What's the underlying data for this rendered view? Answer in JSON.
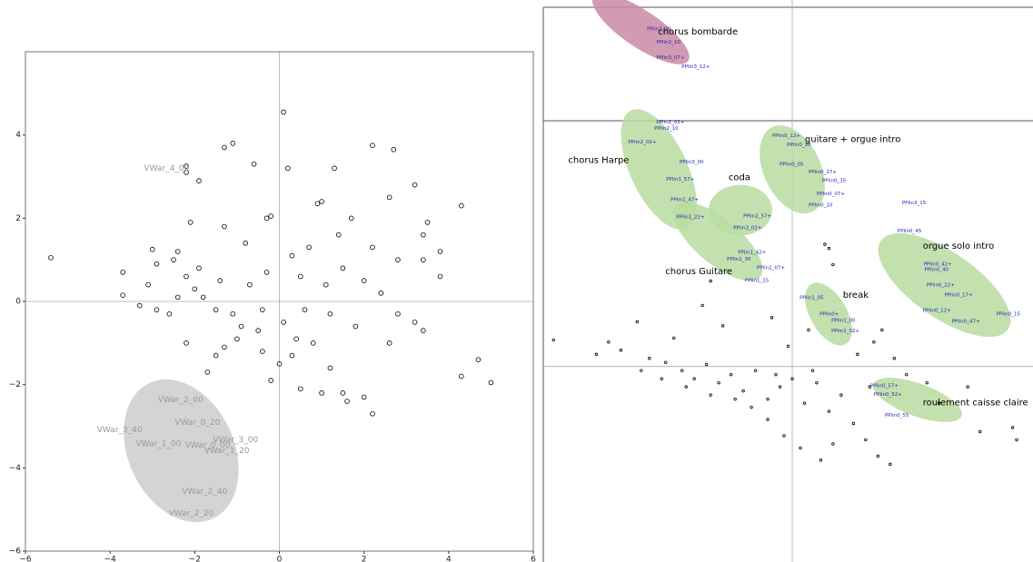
{
  "chart_data": [
    {
      "type": "scatter",
      "xlim": [
        -6,
        6
      ],
      "ylim": [
        -6,
        6
      ],
      "xticks": [
        {
          "value": -6,
          "label": "−6"
        },
        {
          "value": -4,
          "label": "−4"
        },
        {
          "value": -2,
          "label": "−2"
        },
        0,
        2,
        4,
        6
      ],
      "yticks": [
        {
          "value": -6,
          "label": "−6"
        },
        {
          "value": -4,
          "label": "−4"
        },
        {
          "value": -2,
          "label": "−2"
        },
        0,
        2,
        4
      ],
      "color": "#000000",
      "x": [
        -5.4,
        0.1,
        -1.3,
        -1.1,
        -2.2,
        -2.2,
        -1.9,
        -0.6,
        2.2,
        2.7,
        0.2,
        1.3,
        3.2,
        2.6,
        1.0,
        0.9,
        -2.1,
        -0.3,
        -0.2,
        4.3,
        3.5,
        3.4,
        3.8,
        3.4,
        3.8,
        4.3,
        4.7,
        5.0,
        2.0,
        2.2,
        1.6,
        1.0,
        0.5,
        -0.2,
        -1.7,
        -3.7,
        -3.7,
        -3.1,
        -2.9,
        -2.5,
        -2.4,
        -3.0,
        -2.2,
        -1.5,
        -1.3,
        0.0,
        0.3,
        0.8,
        1.2,
        -0.5,
        -0.9,
        -1.1,
        -1.5,
        -1.8,
        -2.0,
        -2.2,
        -1.9,
        -1.4,
        -0.7,
        -0.3,
        0.3,
        0.5,
        1.1,
        1.5,
        2.0,
        2.4,
        2.8,
        3.2,
        3.4,
        2.6,
        1.8,
        1.2,
        0.6,
        0.1,
        -0.4,
        -1.0,
        -2.6,
        -2.9,
        -2.4,
        1.4,
        0.7,
        -0.8,
        -1.3,
        0.4,
        2.2,
        2.8,
        1.7,
        -0.4,
        1.5,
        -3.3
      ],
      "y": [
        1.05,
        4.55,
        3.7,
        3.8,
        3.25,
        3.1,
        2.9,
        3.3,
        3.75,
        3.65,
        3.2,
        3.2,
        2.8,
        2.5,
        2.4,
        2.35,
        1.9,
        2.0,
        2.05,
        2.3,
        1.9,
        1.6,
        1.2,
        1.0,
        0.6,
        -1.8,
        -1.4,
        -1.95,
        -2.3,
        -2.7,
        -2.4,
        -2.2,
        -2.1,
        -1.9,
        -1.7,
        0.15,
        0.7,
        0.4,
        0.9,
        1.0,
        1.2,
        1.25,
        -1.0,
        -1.3,
        -1.1,
        -1.5,
        -1.3,
        -1.0,
        -1.6,
        -0.7,
        -0.6,
        -0.3,
        -0.2,
        0.1,
        0.3,
        0.6,
        0.8,
        0.5,
        0.4,
        0.7,
        1.1,
        0.6,
        0.4,
        0.8,
        0.5,
        0.2,
        -0.3,
        -0.5,
        -0.7,
        -1.0,
        -0.6,
        -0.3,
        -0.2,
        -0.5,
        -0.2,
        -0.9,
        -0.3,
        -0.2,
        0.1,
        1.6,
        1.3,
        1.4,
        1.8,
        -0.9,
        1.3,
        1.0,
        2.0,
        -1.2,
        -2.2,
        -0.1
      ],
      "ellipses": [
        {
          "cx": -2.32,
          "cy": -3.59,
          "rx": 1.25,
          "ry": 1.8,
          "angle": -25,
          "color": "#cccccc"
        }
      ],
      "annotations": [
        {
          "text": "VWar_4_00",
          "x": -3.2,
          "y": 3.2,
          "color": "#999999"
        },
        {
          "text": "VWar_2_00",
          "x": -2.87,
          "y": -2.37,
          "color": "#999999"
        },
        {
          "text": "VWar_3_40",
          "x": -4.31,
          "y": -3.09,
          "color": "#999999"
        },
        {
          "text": "VWar_0_20",
          "x": -2.47,
          "y": -2.91,
          "color": "#999999"
        },
        {
          "text": "VWar_1_00",
          "x": -3.39,
          "y": -3.43,
          "color": "#999999"
        },
        {
          "text": "VWar_0_00",
          "x": -2.23,
          "y": -3.46,
          "color": "#999999"
        },
        {
          "text": "VWar_3_00",
          "x": -1.57,
          "y": -3.33,
          "color": "#999999"
        },
        {
          "text": "VWar_1_20",
          "x": -1.78,
          "y": -3.59,
          "color": "#999999"
        },
        {
          "text": "VWar_2_40",
          "x": -2.3,
          "y": -4.57,
          "color": "#999999"
        },
        {
          "text": "VWar_2_20",
          "x": -2.62,
          "y": -5.09,
          "color": "#999999"
        }
      ]
    },
    {
      "type": "scatter",
      "xlim": [
        -6.1,
        5.9
      ],
      "ylim": [
        -4.8,
        9
      ],
      "color": "#000000",
      "x": [
        -5.85,
        -4.8,
        -4.2,
        -3.5,
        -3.1,
        -2.7,
        -2.4,
        -2.1,
        -1.8,
        -1.5,
        -1.2,
        -0.9,
        -0.6,
        -0.3,
        0.0,
        0.3,
        0.6,
        0.9,
        1.2,
        1.5,
        1.8,
        2.1,
        2.4,
        -0.2,
        0.2,
        0.7,
        1.0,
        -0.6,
        -1.0,
        -1.4,
        -2.0,
        -2.6,
        -3.2,
        -3.7,
        -4.5,
        -3.8,
        -2.2,
        -2.0,
        -0.5,
        0.9,
        1.0,
        0.8,
        2.0,
        2.2,
        2.5,
        3.3,
        4.6,
        5.4,
        5.5,
        4.3,
        3.6,
        2.8,
        -0.1,
        0.4,
        -1.7,
        -2.9,
        1.6,
        0.5,
        -0.4,
        1.9
      ],
      "y": [
        0.65,
        0.3,
        0.4,
        0.2,
        0.1,
        -0.1,
        -0.3,
        0.05,
        -0.4,
        -0.2,
        -0.6,
        -0.1,
        -0.8,
        -0.5,
        -0.3,
        -0.9,
        -0.4,
        -1.1,
        -0.7,
        -1.4,
        -1.8,
        -2.2,
        -2.4,
        -1.7,
        -2.0,
        -2.3,
        -1.9,
        -1.3,
        -1.0,
        -0.8,
        -0.7,
        -0.5,
        -0.3,
        -0.1,
        0.6,
        1.1,
        1.5,
        2.1,
        1.2,
        2.9,
        2.5,
        3.0,
        0.6,
        0.9,
        0.2,
        -0.4,
        -1.6,
        -1.5,
        -1.8,
        -0.5,
        -0.9,
        -0.2,
        0.5,
        0.9,
        1.0,
        0.7,
        0.3,
        -0.1,
        -0.2,
        -0.5
      ],
      "ellipses": [
        {
          "cx": -3.71,
          "cy": 8.29,
          "rx": 1.4,
          "ry": 0.45,
          "angle": 34,
          "color": "#c98aa3"
        },
        {
          "cx": -3.27,
          "cy": 4.84,
          "rx": 0.7,
          "ry": 1.6,
          "angle": -25,
          "color": "#b9dca0"
        },
        {
          "cx": -1.82,
          "cy": 3.07,
          "rx": 1.35,
          "ry": 0.55,
          "angle": 40,
          "color": "#b9dca0"
        },
        {
          "cx": -1.27,
          "cy": 3.84,
          "rx": 0.78,
          "ry": 0.62,
          "angle": 0,
          "color": "#b9dca0"
        },
        {
          "cx": 0,
          "cy": 4.84,
          "rx": 0.7,
          "ry": 1.15,
          "angle": -25,
          "color": "#b9dca0"
        },
        {
          "cx": 3.73,
          "cy": 2.0,
          "rx": 1.9,
          "ry": 0.8,
          "angle": 35,
          "color": "#b9dca0"
        },
        {
          "cx": 0.89,
          "cy": 1.29,
          "rx": 0.45,
          "ry": 0.85,
          "angle": -30,
          "color": "#b9dca0"
        },
        {
          "cx": 3.07,
          "cy": -0.82,
          "rx": 1.15,
          "ry": 0.4,
          "angle": 20,
          "color": "#b9dca0"
        }
      ],
      "annotations": [
        {
          "text": "chorus bombarde",
          "x": -3.29,
          "y": 8.22,
          "color": "#000000"
        },
        {
          "text": "chorus Harpe",
          "x": -5.49,
          "y": 5.07,
          "color": "#000000"
        },
        {
          "text": "coda",
          "x": -1.56,
          "y": 4.64,
          "color": "#000000"
        },
        {
          "text": "guitare + orgue intro",
          "x": 0.31,
          "y": 5.58,
          "color": "#000000"
        },
        {
          "text": "orgue solo intro",
          "x": 3.2,
          "y": 2.96,
          "color": "#000000"
        },
        {
          "text": "chorus Guitare",
          "x": -3.11,
          "y": 2.33,
          "color": "#000000"
        },
        {
          "text": "break",
          "x": 1.24,
          "y": 1.76,
          "color": "#000000"
        },
        {
          "text": "roulement caisse claire",
          "x": 3.2,
          "y": -0.89,
          "color": "#000000"
        }
      ],
      "point_labels": [
        {
          "text": "PPlin0_12+",
          "x": -0.49,
          "y": 5.67
        },
        {
          "text": "PPlin0_10",
          "x": -0.13,
          "y": 5.44
        },
        {
          "text": "PPlin0_05",
          "x": -0.31,
          "y": 4.96
        },
        {
          "text": "PPlin0_27+",
          "x": 0.4,
          "y": 4.78
        },
        {
          "text": "PPlin0_35",
          "x": 0.73,
          "y": 4.56
        },
        {
          "text": "PPlin0_07+",
          "x": 0.6,
          "y": 4.24
        },
        {
          "text": "PPlin0_10",
          "x": 0.4,
          "y": 3.96
        },
        {
          "text": "PPlin3_15",
          "x": 2.69,
          "y": 4.02
        },
        {
          "text": "PPlin0_45",
          "x": 2.58,
          "y": 3.33
        },
        {
          "text": "PPlin0_42+",
          "x": 3.22,
          "y": 2.51
        },
        {
          "text": "PPlin0_40",
          "x": 3.24,
          "y": 2.38
        },
        {
          "text": "PPlin0_22+",
          "x": 3.29,
          "y": 2.0
        },
        {
          "text": "PPlin0_17+",
          "x": 3.73,
          "y": 1.76
        },
        {
          "text": "PPlin0_12+",
          "x": 3.2,
          "y": 1.38
        },
        {
          "text": "PPlin0_47+",
          "x": 3.91,
          "y": 1.11
        },
        {
          "text": "PPlin0_15",
          "x": 5.0,
          "y": 1.29
        },
        {
          "text": "PPlin1_05",
          "x": 0.18,
          "y": 1.69
        },
        {
          "text": "PPlin0+",
          "x": 0.67,
          "y": 1.29
        },
        {
          "text": "PPlin1_00",
          "x": 0.96,
          "y": 1.13
        },
        {
          "text": "PPlin1_02+",
          "x": 0.96,
          "y": 0.87
        },
        {
          "text": "PPlin0_57+",
          "x": 1.91,
          "y": -0.47
        },
        {
          "text": "PPlin0_52+",
          "x": 2.0,
          "y": -0.69
        },
        {
          "text": "PPlin0_55",
          "x": 2.27,
          "y": -1.2
        },
        {
          "text": "PPlin2_02+",
          "x": -3.33,
          "y": 6.0
        },
        {
          "text": "PPlin2_10",
          "x": -3.38,
          "y": 5.84
        },
        {
          "text": "PPlin2_02+",
          "x": -4.02,
          "y": 5.51
        },
        {
          "text": "PPlin3_00",
          "x": -2.76,
          "y": 5.02
        },
        {
          "text": "PPlin1_57+",
          "x": -3.09,
          "y": 4.6
        },
        {
          "text": "PPlin1_47+",
          "x": -2.98,
          "y": 4.09
        },
        {
          "text": "PPlin1_22+",
          "x": -2.84,
          "y": 3.67
        },
        {
          "text": "PPlin2_57+",
          "x": -1.2,
          "y": 3.69
        },
        {
          "text": "PPlin3_02+",
          "x": -1.44,
          "y": 3.4
        },
        {
          "text": "PPlin1_42+",
          "x": -1.33,
          "y": 2.8
        },
        {
          "text": "PPlin1_30",
          "x": -1.6,
          "y": 2.64
        },
        {
          "text": "PPlin1_07+",
          "x": -0.87,
          "y": 2.42
        },
        {
          "text": "PPlin1_15",
          "x": -1.16,
          "y": 2.11
        },
        {
          "text": "PPlin2_30",
          "x": -3.56,
          "y": 8.29
        },
        {
          "text": "PPlin2_10",
          "x": -3.33,
          "y": 7.96
        },
        {
          "text": "PPlin3_07+",
          "x": -3.33,
          "y": 7.58
        },
        {
          "text": "PPlin3_12+",
          "x": -2.71,
          "y": 7.36
        }
      ],
      "point_label_color": "#2525b8"
    }
  ]
}
